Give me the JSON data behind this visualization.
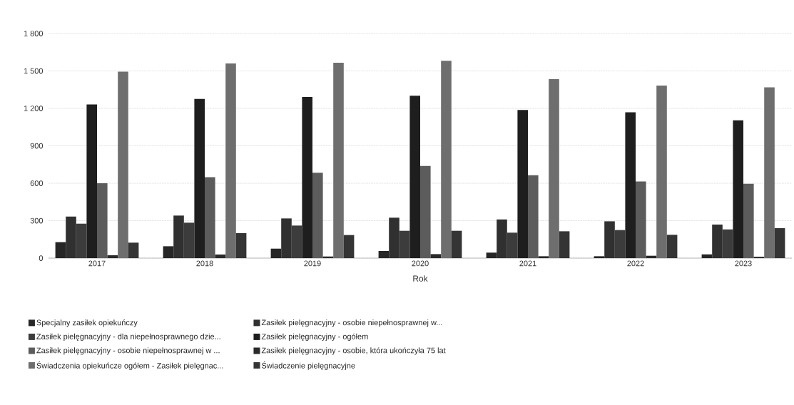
{
  "chart_data": {
    "type": "bar",
    "xlabel": "Rok",
    "categories": [
      "2017",
      "2018",
      "2019",
      "2020",
      "2021",
      "2022",
      "2023"
    ],
    "series": [
      {
        "name": "Specjalny zasiłek opiekuńczy",
        "color": "#262626",
        "values": [
          128,
          95,
          76,
          57,
          44,
          15,
          30
        ]
      },
      {
        "name": "Zasiłek pielęgnacyjny -  osobie niepełnosprawnej w...",
        "color": "#303030",
        "values": [
          333,
          341,
          318,
          324,
          310,
          295,
          269
        ]
      },
      {
        "name": "Zasiłek pielęgnacyjny - dla niepełnosprawnego dzie...",
        "color": "#3c3c3c",
        "values": [
          276,
          284,
          261,
          219,
          204,
          225,
          230
        ]
      },
      {
        "name": "Zasiłek pielęgnacyjny - ogółem",
        "color": "#1e1e1e",
        "values": [
          1232,
          1276,
          1291,
          1301,
          1187,
          1168,
          1105
        ]
      },
      {
        "name": "Zasiłek pielęgnacyjny - osobie niepełnosprawnej w ...",
        "color": "#5c5c5c",
        "values": [
          600,
          648,
          684,
          739,
          665,
          615,
          596
        ]
      },
      {
        "name": "Zasiłek pielęgnacyjny - osobie, która ukończyła 75 lat",
        "color": "#2a2a2a",
        "values": [
          23,
          29,
          13,
          32,
          15,
          19,
          11
        ]
      },
      {
        "name": "Świadczenia opiekuńcze ogółem - Zasiłek pielęgnac...",
        "color": "#6e6e6e",
        "values": [
          1495,
          1560,
          1566,
          1581,
          1434,
          1383,
          1368
        ]
      },
      {
        "name": "Świadczenie pielęgnacyjne",
        "color": "#343434",
        "values": [
          124,
          200,
          185,
          219,
          215,
          187,
          240
        ]
      }
    ],
    "ylim": [
      0,
      1800
    ],
    "yticks": [
      0,
      300,
      600,
      900,
      {
        "value": 1200,
        "label": "1 200"
      },
      {
        "value": 1500,
        "label": "1 500"
      },
      {
        "value": 1800,
        "label": "1 800"
      }
    ],
    "grid": "y",
    "legend": "bottom"
  }
}
